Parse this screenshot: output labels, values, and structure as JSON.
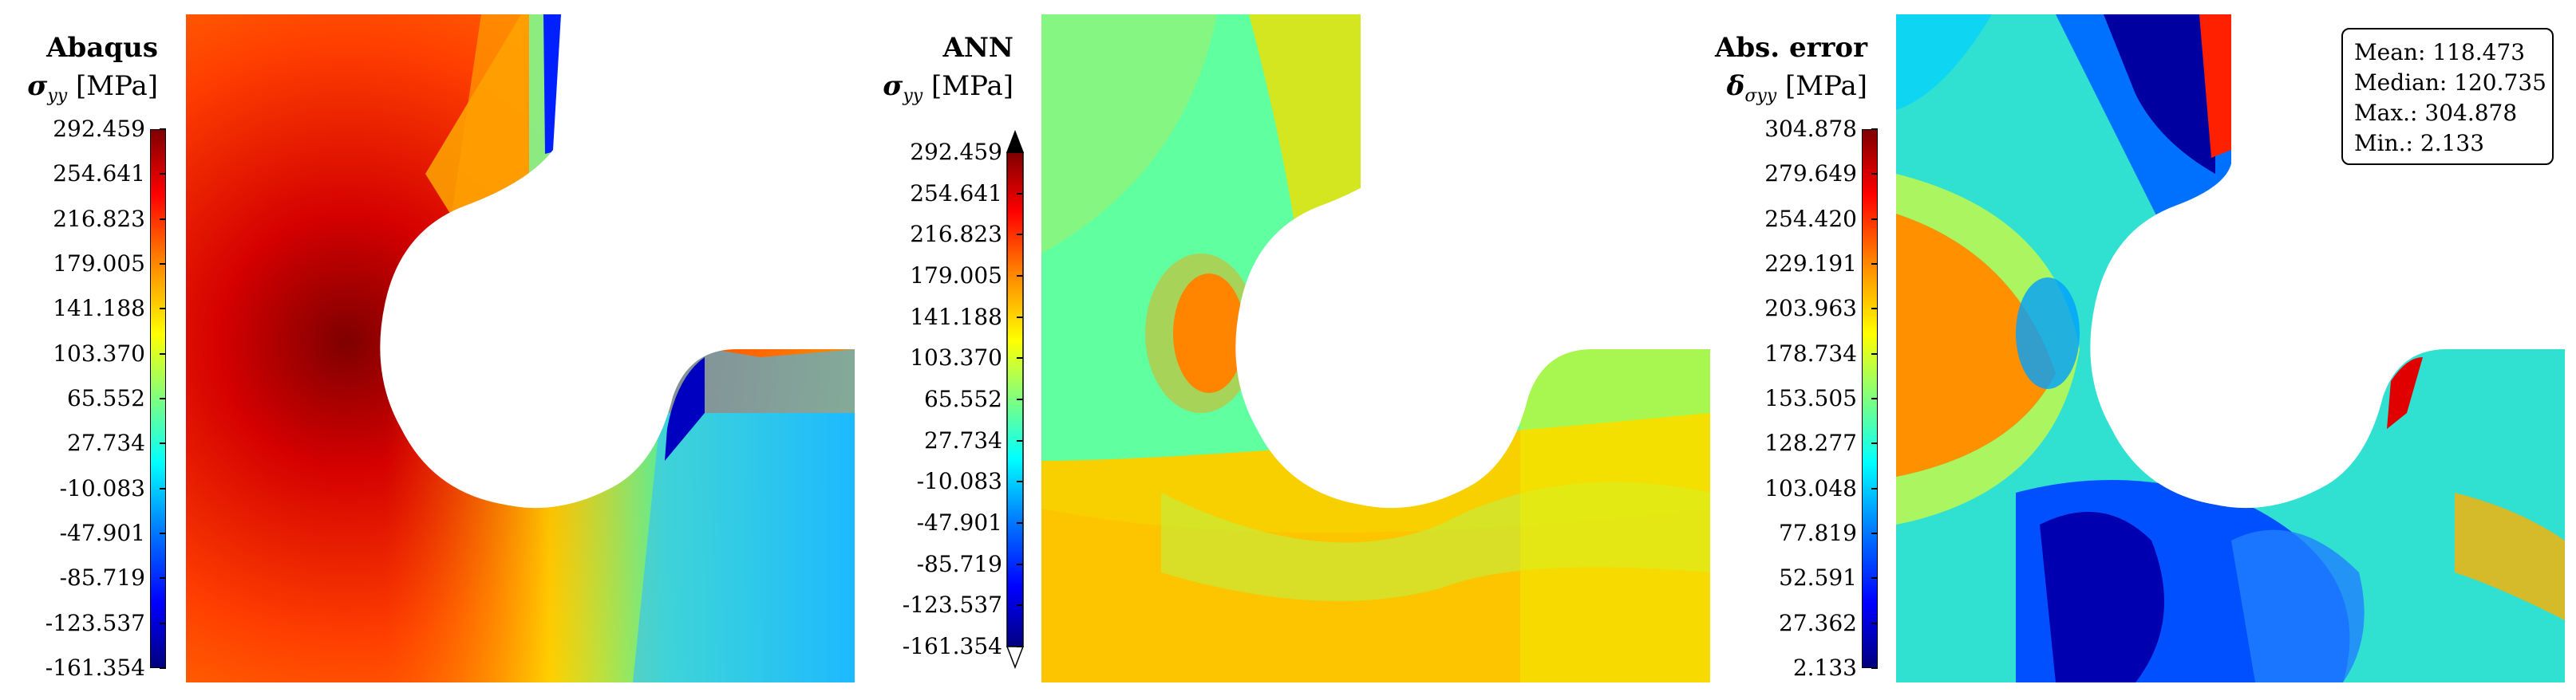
{
  "chart_data": [
    {
      "type": "heatmap",
      "title": "Abaqus",
      "quantity_symbol": "σ",
      "quantity_subscript": "yy",
      "unit": "[MPa]",
      "colorbar_ticks": [
        "292.459",
        "254.641",
        "216.823",
        "179.005",
        "141.188",
        "103.370",
        "65.552",
        "27.734",
        "-10.083",
        "-47.901",
        "-85.719",
        "-123.537",
        "-161.354"
      ],
      "range": [
        -161.354,
        292.459
      ],
      "colormap": "jet"
    },
    {
      "type": "heatmap",
      "title": "ANN",
      "quantity_symbol": "σ",
      "quantity_subscript": "yy",
      "unit": "[MPa]",
      "colorbar_ticks": [
        "292.459",
        "254.641",
        "216.823",
        "179.005",
        "141.188",
        "103.370",
        "65.552",
        "27.734",
        "-10.083",
        "-47.901",
        "-85.719",
        "-123.537",
        "-161.354"
      ],
      "range": [
        -161.354,
        292.459
      ],
      "colormap": "jet",
      "colorbar_extend": "both"
    },
    {
      "type": "heatmap",
      "title": "Abs. error",
      "quantity_symbol": "δ",
      "quantity_subscript": "σyy",
      "unit": "[MPa]",
      "colorbar_ticks": [
        "304.878",
        "279.649",
        "254.420",
        "229.191",
        "203.963",
        "178.734",
        "153.505",
        "128.277",
        "103.048",
        "77.819",
        "52.591",
        "27.362",
        "2.133"
      ],
      "range": [
        2.133,
        304.878
      ],
      "colormap": "jet",
      "stats": {
        "mean": "Mean: 118.473",
        "median": "Median: 120.735",
        "max": "Max.: 304.878",
        "min": "Min.: 2.133"
      }
    }
  ],
  "colors": {
    "jet_darkred": "#7f0000",
    "jet_red": "#ff0000",
    "jet_orange": "#ff8000",
    "jet_yellow": "#ffff00",
    "jet_green": "#7fff7f",
    "jet_cyan": "#00ffff",
    "jet_blue": "#0000ff",
    "jet_darkblue": "#00007f"
  }
}
